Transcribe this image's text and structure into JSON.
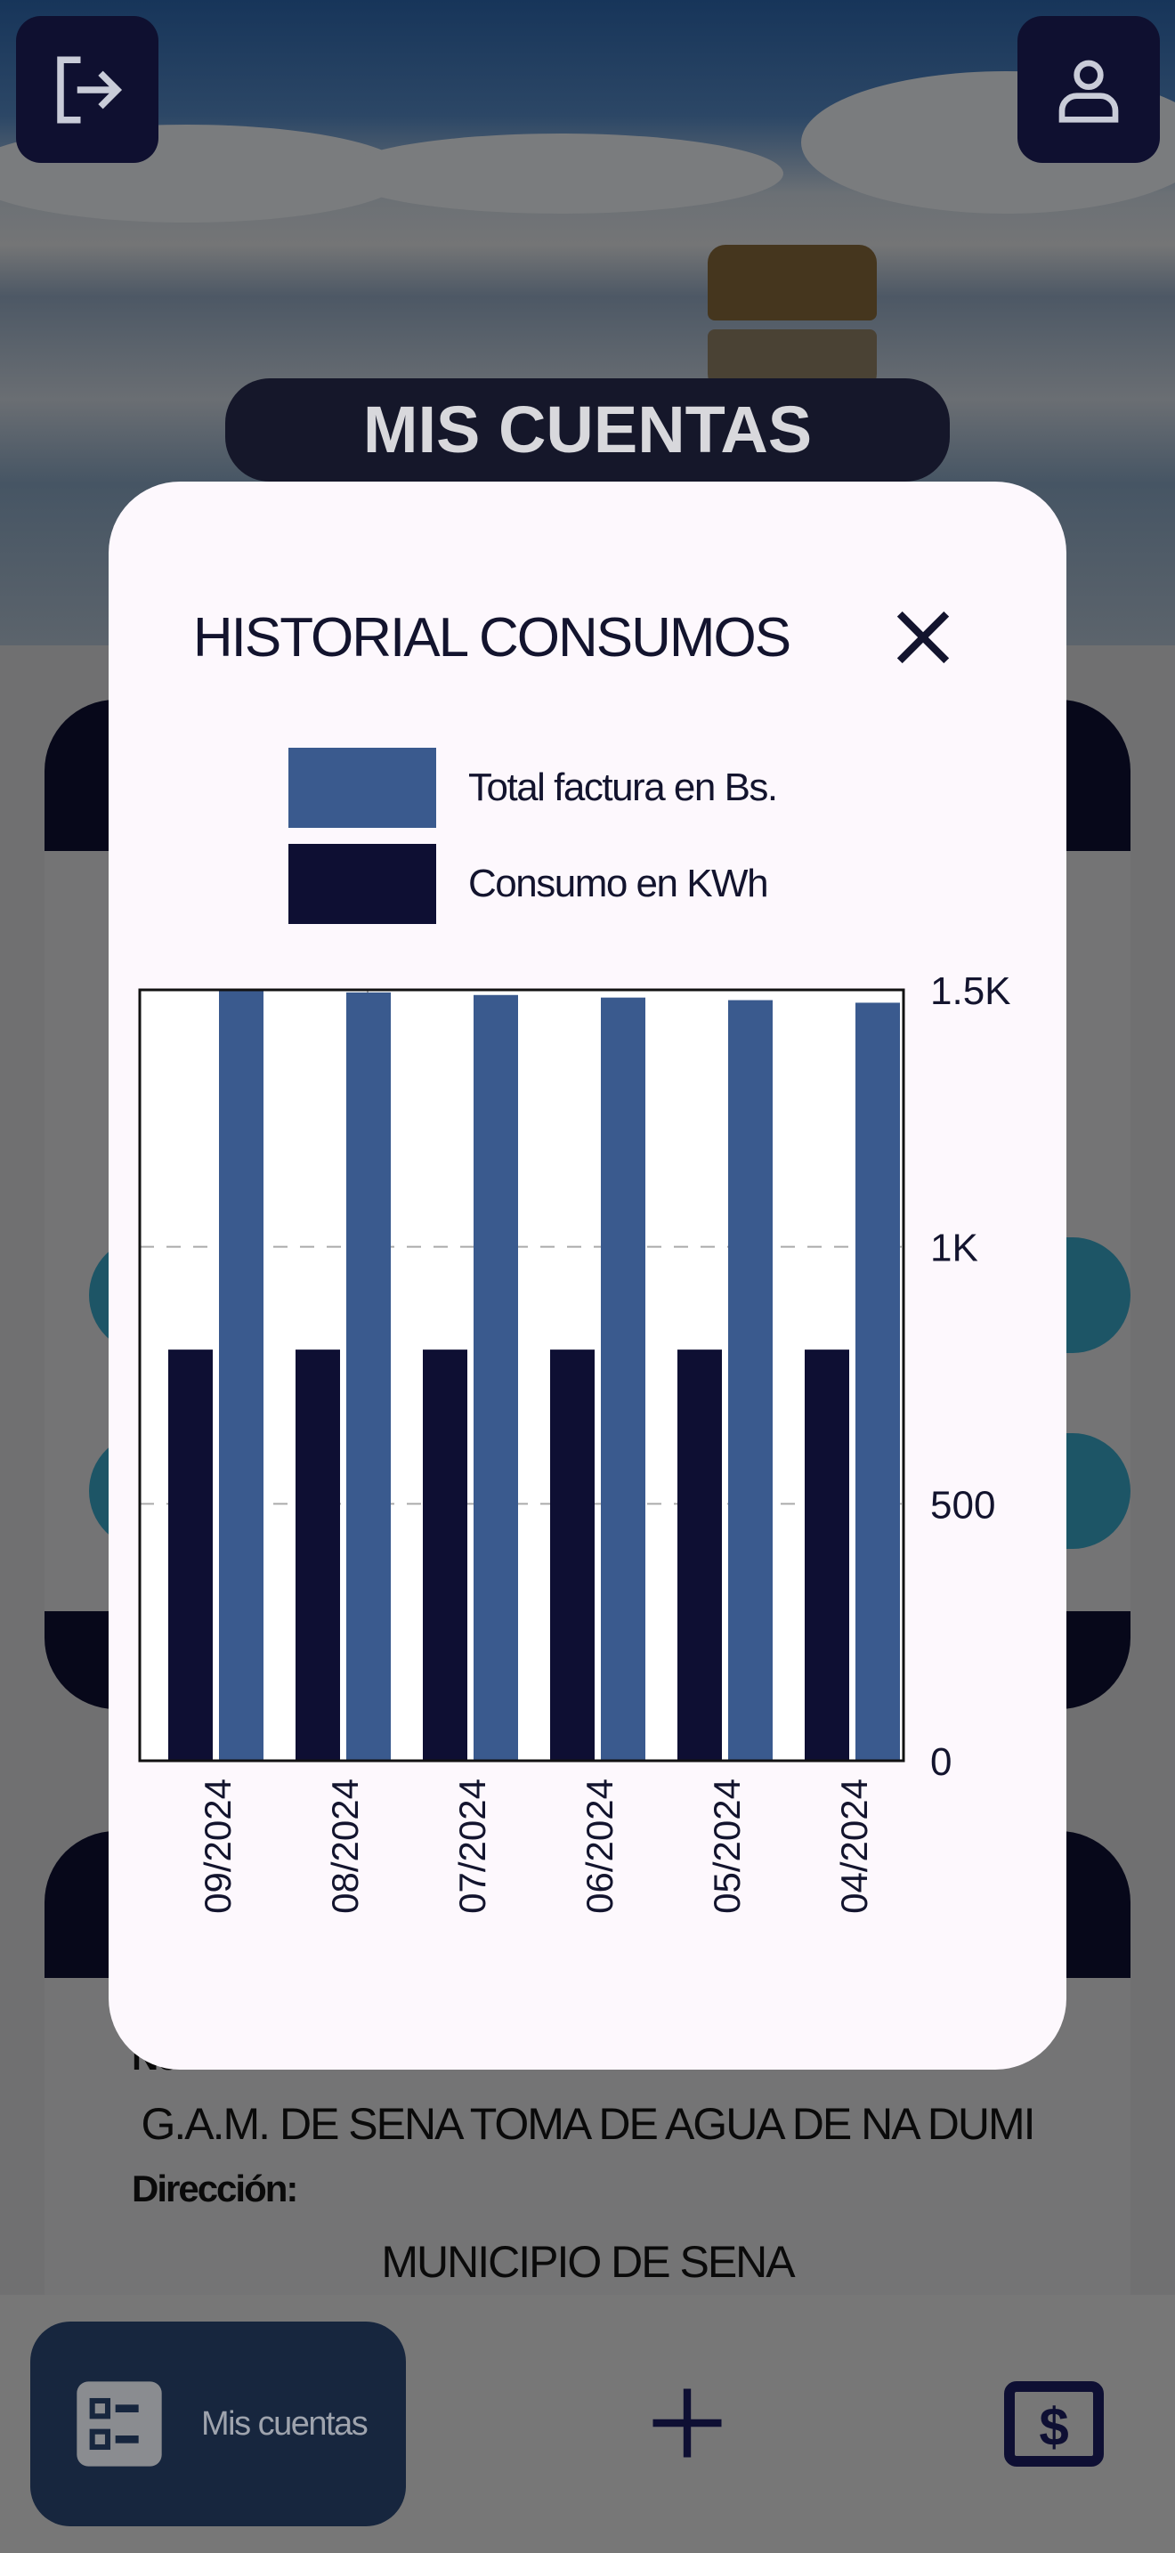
{
  "header": {
    "exit_icon": "logout-icon",
    "profile_icon": "user-icon",
    "section_title": "MIS CUENTAS"
  },
  "account_card": {
    "name_label": "No",
    "name_value": "G.A.M. DE SENA TOMA DE AGUA DE NA DUMI",
    "address_label": "Dirección:",
    "address_value": "MUNICIPIO DE SENA"
  },
  "bottom_nav": {
    "items": [
      {
        "label": "Mis cuentas",
        "icon": "list-icon",
        "active": true
      },
      {
        "icon": "plus-icon"
      },
      {
        "icon": "dollar-bill-icon"
      }
    ]
  },
  "modal": {
    "title": "HISTORIAL CONSUMOS",
    "close_icon": "close-icon"
  },
  "colors": {
    "total": "#3a5a8e",
    "consumo": "#0e0f33",
    "modal_bg": "#fdf8fd"
  },
  "chart_data": {
    "type": "bar",
    "title": "HISTORIAL CONSUMOS",
    "categories": [
      "09/2024",
      "08/2024",
      "07/2024",
      "06/2024",
      "05/2024",
      "04/2024"
    ],
    "series": [
      {
        "name": "Consumo en KWh",
        "values": [
          800,
          800,
          800,
          800,
          800,
          800
        ]
      },
      {
        "name": "Total factura en Bs.",
        "values": [
          1500,
          1495,
          1490,
          1485,
          1480,
          1475
        ]
      }
    ],
    "ylim": [
      0,
      1500
    ],
    "yticks": [
      0,
      500,
      1000,
      1500
    ],
    "ytick_labels": [
      "0",
      "500",
      "1K",
      "1.5K"
    ],
    "legend": [
      "Total factura en Bs.",
      "Consumo en KWh"
    ],
    "legend_position": "top",
    "grid": true
  }
}
